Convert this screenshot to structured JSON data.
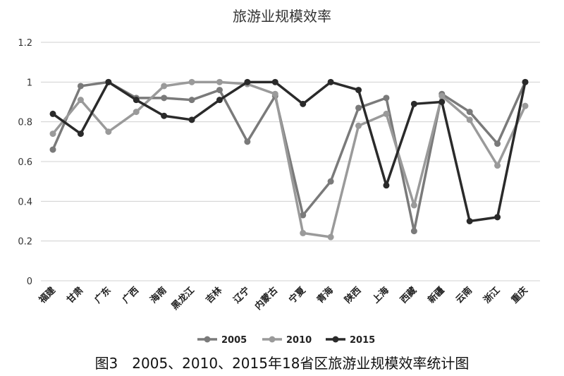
{
  "chart_data": {
    "type": "line",
    "title": "旅游业规模效率",
    "caption": "图3　2005、2010、2015年18省区旅游业规模效率统计图",
    "categories": [
      "福建",
      "甘肃",
      "广东",
      "广西",
      "海南",
      "黑龙江",
      "吉林",
      "辽宁",
      "内蒙古",
      "宁夏",
      "青海",
      "陕西",
      "上海",
      "西藏",
      "新疆",
      "云南",
      "浙江",
      "重庆"
    ],
    "ylim": [
      0,
      1.2
    ],
    "yticks": [
      "0",
      "0.2",
      "0.4",
      "0.6",
      "0.8",
      "1",
      "1.2"
    ],
    "grid": true,
    "legend_position": "bottom",
    "series": [
      {
        "name": "2005",
        "color": "#7a7a7a",
        "values": [
          0.66,
          0.98,
          1.0,
          0.92,
          0.92,
          0.91,
          0.96,
          0.7,
          0.93,
          0.33,
          0.5,
          0.87,
          0.92,
          0.25,
          0.94,
          0.85,
          0.69,
          1.0
        ]
      },
      {
        "name": "2010",
        "color": "#9a9a9a",
        "values": [
          0.74,
          0.91,
          0.75,
          0.85,
          0.98,
          1.0,
          1.0,
          0.99,
          0.94,
          0.24,
          0.22,
          0.78,
          0.84,
          0.38,
          0.93,
          0.81,
          0.58,
          0.88
        ]
      },
      {
        "name": "2015",
        "color": "#2a2a2a",
        "values": [
          0.84,
          0.74,
          1.0,
          0.91,
          0.83,
          0.81,
          0.91,
          1.0,
          1.0,
          0.89,
          1.0,
          0.96,
          0.48,
          0.89,
          0.9,
          0.3,
          0.32,
          1.0
        ]
      }
    ]
  }
}
